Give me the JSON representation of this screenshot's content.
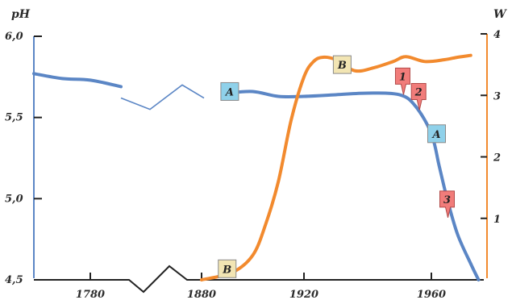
{
  "chart_data": {
    "type": "line",
    "y_left": {
      "title": "pH",
      "ticks": [
        {
          "value": 6.0,
          "label": "6,0"
        },
        {
          "value": 5.5,
          "label": "5,5"
        },
        {
          "value": 5.0,
          "label": "5,0"
        },
        {
          "value": 4.5,
          "label": "4,5"
        }
      ],
      "range": [
        4.5,
        6.0
      ]
    },
    "y_right": {
      "title": "W",
      "ticks": [
        {
          "value": 1,
          "label": "1"
        },
        {
          "value": 2,
          "label": "2"
        },
        {
          "value": 3,
          "label": "3"
        },
        {
          "value": 4,
          "label": "4"
        }
      ],
      "range": [
        0,
        4.2
      ]
    },
    "x_ticks": [
      {
        "value": 1780,
        "label": "1780"
      },
      {
        "value": 1880,
        "label": "1880"
      },
      {
        "value": 1920,
        "label": "1920"
      },
      {
        "value": 1960,
        "label": "1960"
      }
    ],
    "x_axis_break": true,
    "series": [
      {
        "id": "A",
        "axis": "left",
        "color": "#5b86c5",
        "segments": [
          {
            "style": "thick",
            "points": [
              [
                1760,
                5.77
              ],
              [
                1770,
                5.74
              ],
              [
                1780,
                5.73
              ],
              [
                1790,
                5.69
              ]
            ]
          },
          {
            "style": "thin",
            "points": [
              [
                1790,
                5.62
              ],
              [
                1815,
                5.55
              ],
              [
                1835,
                5.7
              ],
              [
                1850,
                5.62
              ]
            ]
          },
          {
            "style": "thick",
            "points": [
              [
                1890,
                5.65
              ],
              [
                1900,
                5.66
              ],
              [
                1910,
                5.63
              ],
              [
                1920,
                5.63
              ],
              [
                1930,
                5.64
              ],
              [
                1940,
                5.65
              ],
              [
                1950,
                5.64
              ],
              [
                1955,
                5.57
              ],
              [
                1960,
                5.4
              ],
              [
                1963,
                5.2
              ],
              [
                1966,
                5.0
              ],
              [
                1970,
                4.78
              ],
              [
                1975,
                4.6
              ],
              [
                1978,
                4.5
              ]
            ]
          }
        ],
        "labels": [
          {
            "x": 1891,
            "y": 5.66,
            "text": "A"
          },
          {
            "x": 1962,
            "y": 5.4,
            "text": "A"
          }
        ]
      },
      {
        "id": "B",
        "axis": "right",
        "color": "#f28a2e",
        "segments": [
          {
            "style": "thick",
            "points": [
              [
                1880,
                0
              ],
              [
                1892,
                0.12
              ],
              [
                1900,
                0.4
              ],
              [
                1905,
                0.9
              ],
              [
                1910,
                1.6
              ],
              [
                1915,
                2.6
              ],
              [
                1920,
                3.3
              ],
              [
                1923,
                3.55
              ],
              [
                1926,
                3.62
              ],
              [
                1930,
                3.58
              ],
              [
                1936,
                3.4
              ],
              [
                1942,
                3.45
              ],
              [
                1948,
                3.55
              ],
              [
                1952,
                3.63
              ],
              [
                1958,
                3.55
              ],
              [
                1965,
                3.58
              ],
              [
                1970,
                3.62
              ],
              [
                1975,
                3.65
              ]
            ]
          }
        ],
        "labels": [
          {
            "x": 1890,
            "y": 0.18,
            "text": "B"
          },
          {
            "x": 1932,
            "y": 3.5,
            "text": "B"
          }
        ]
      }
    ],
    "events": [
      {
        "label": "1",
        "x": 1951,
        "y": 3.3
      },
      {
        "label": "2",
        "x": 1956,
        "y": 3.05
      },
      {
        "label": "3",
        "x": 1966,
        "y": 1.3
      }
    ],
    "colors": {
      "left_axis": "#5b86c5",
      "right_axis": "#f28a2e",
      "label_a_fill": "#8fd1ea",
      "label_b_fill": "#f2e5b3",
      "event_fill": "#f17c7a"
    }
  }
}
